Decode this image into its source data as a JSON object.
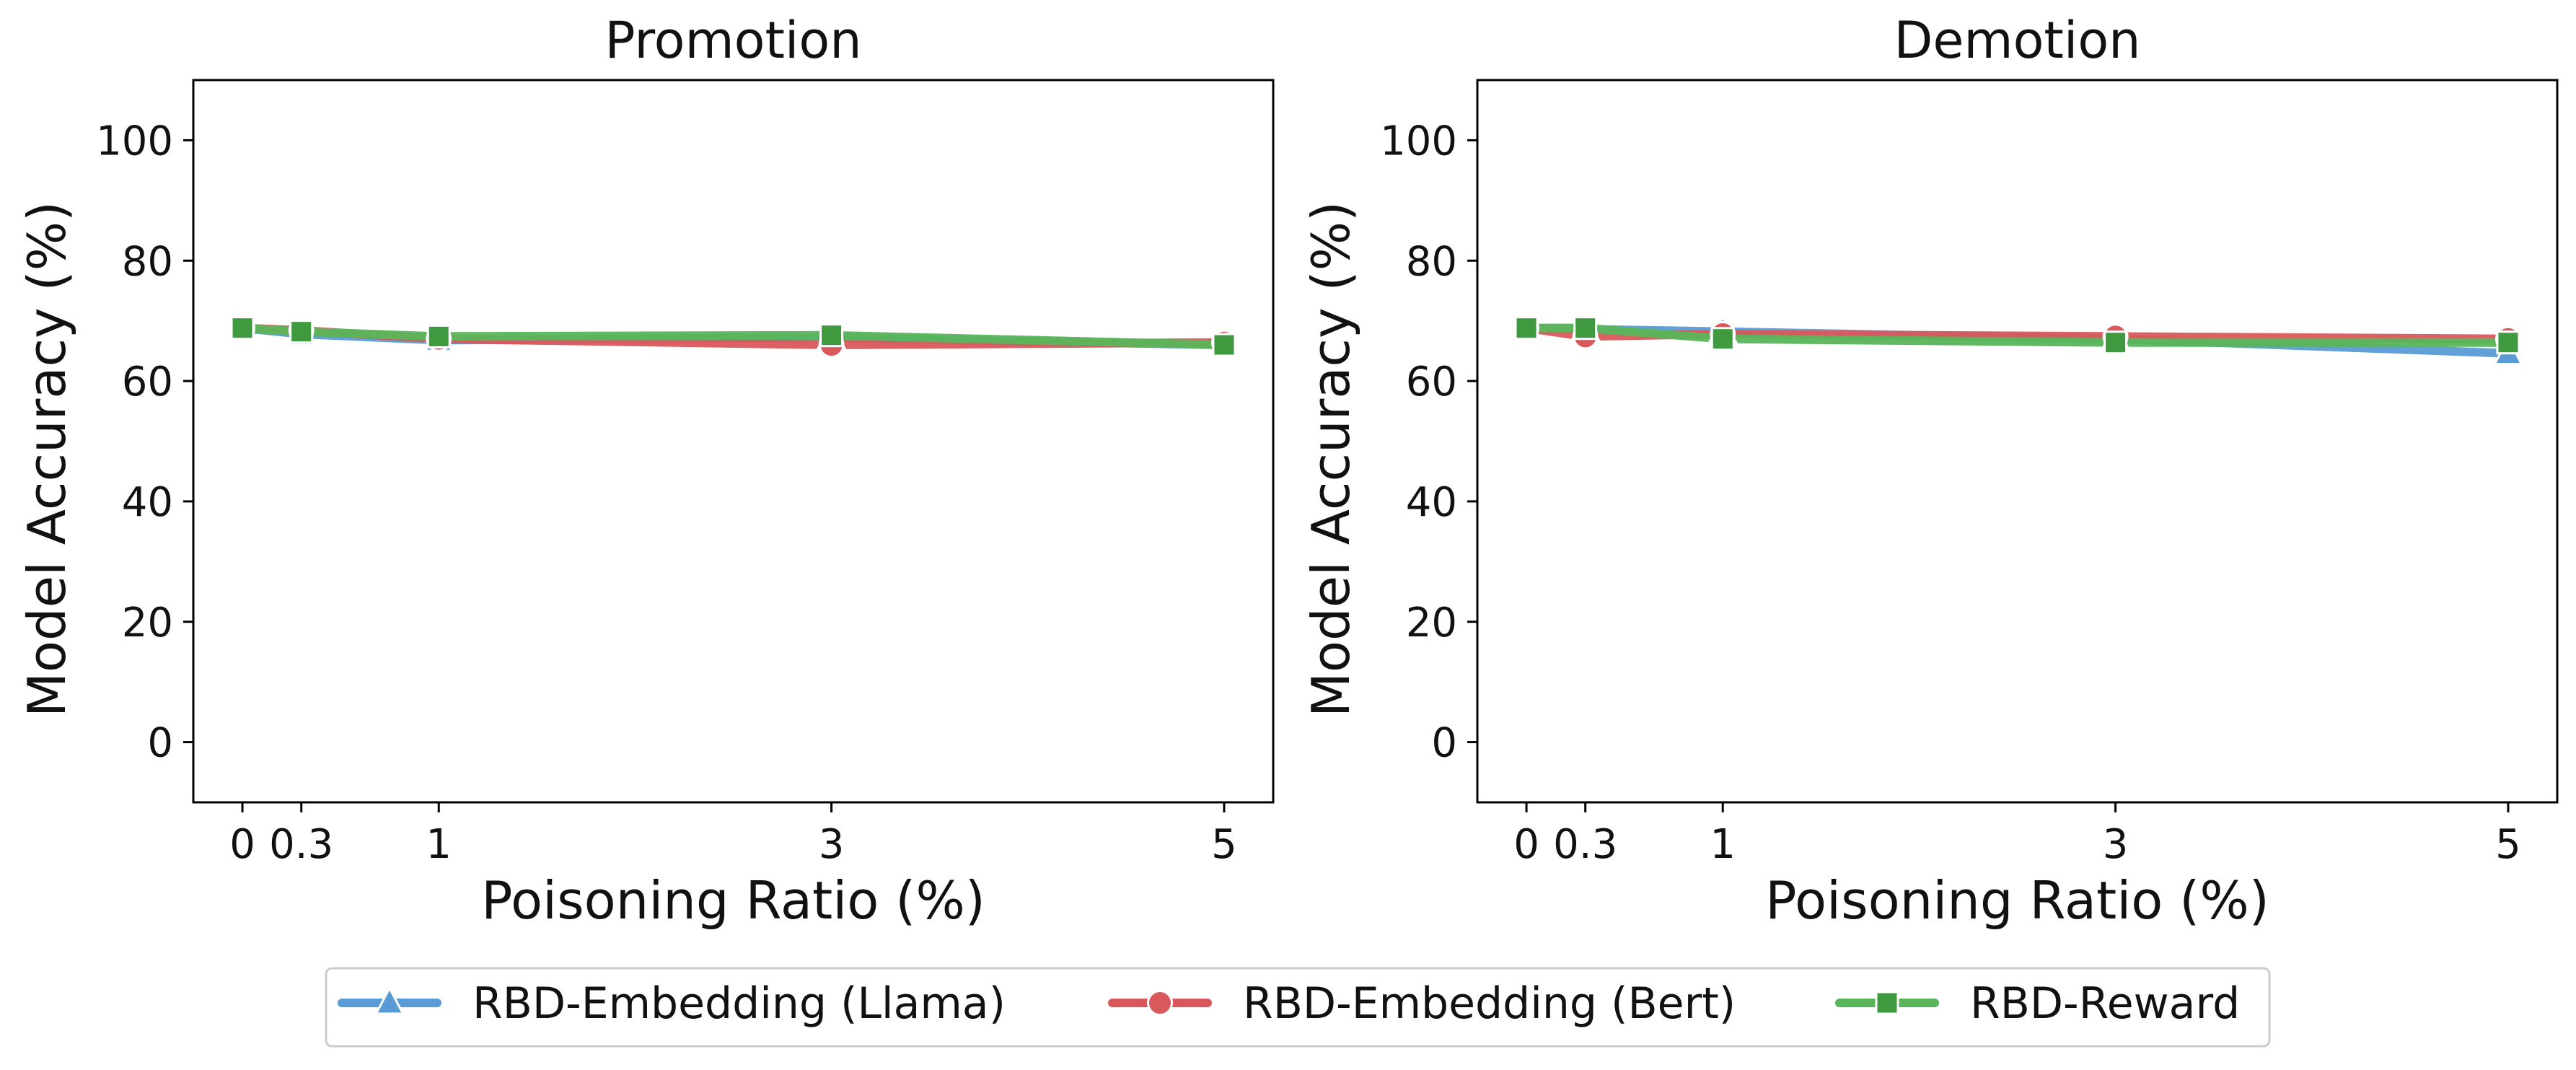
{
  "colors": {
    "llama": "#5b9bd5",
    "bert": "#d9585c",
    "reward": "#59b55a",
    "reward_marker": "#3f9a3f"
  },
  "legend": {
    "items": [
      {
        "label": "RBD-Embedding (Llama)",
        "marker": "triangle",
        "color_key": "llama"
      },
      {
        "label": "RBD-Embedding (Bert)",
        "marker": "circle",
        "color_key": "bert"
      },
      {
        "label": "RBD-Reward",
        "marker": "square",
        "color_key": "reward"
      }
    ],
    "placement": "bottom-center"
  },
  "chart_data": [
    {
      "type": "line",
      "title": "Promotion",
      "xlabel": "Poisoning Ratio (%)",
      "ylabel": "Model Accuracy (%)",
      "x": [
        0,
        0.3,
        1,
        3,
        5
      ],
      "xticks": [
        "0",
        "0.3",
        "1",
        "3",
        "5"
      ],
      "yticks": [
        0,
        20,
        40,
        60,
        80,
        100
      ],
      "ylim": [
        -10,
        110
      ],
      "xlim": [
        -0.25,
        5.25
      ],
      "grid": false,
      "series": [
        {
          "name": "RBD-Embedding (Llama)",
          "marker": "triangle",
          "values": [
            68.8,
            67.8,
            66.8,
            67.2,
            66.0
          ]
        },
        {
          "name": "RBD-Embedding (Bert)",
          "marker": "circle",
          "values": [
            68.8,
            68.4,
            67.0,
            66.0,
            66.4
          ]
        },
        {
          "name": "RBD-Reward",
          "marker": "square",
          "values": [
            68.8,
            68.2,
            67.4,
            67.6,
            66.0
          ]
        }
      ]
    },
    {
      "type": "line",
      "title": "Demotion",
      "xlabel": "Poisoning Ratio (%)",
      "ylabel": "Model Accuracy (%)",
      "x": [
        0,
        0.3,
        1,
        3,
        5
      ],
      "xticks": [
        "0",
        "0.3",
        "1",
        "3",
        "5"
      ],
      "yticks": [
        0,
        20,
        40,
        60,
        80,
        100
      ],
      "ylim": [
        -10,
        110
      ],
      "xlim": [
        -0.25,
        5.25
      ],
      "grid": false,
      "series": [
        {
          "name": "RBD-Embedding (Llama)",
          "marker": "triangle",
          "values": [
            68.8,
            68.6,
            68.2,
            67.0,
            64.6
          ]
        },
        {
          "name": "RBD-Embedding (Bert)",
          "marker": "circle",
          "values": [
            68.8,
            67.4,
            67.8,
            67.4,
            67.0
          ]
        },
        {
          "name": "RBD-Reward",
          "marker": "square",
          "values": [
            68.8,
            68.8,
            67.0,
            66.4,
            66.4
          ]
        }
      ]
    }
  ]
}
